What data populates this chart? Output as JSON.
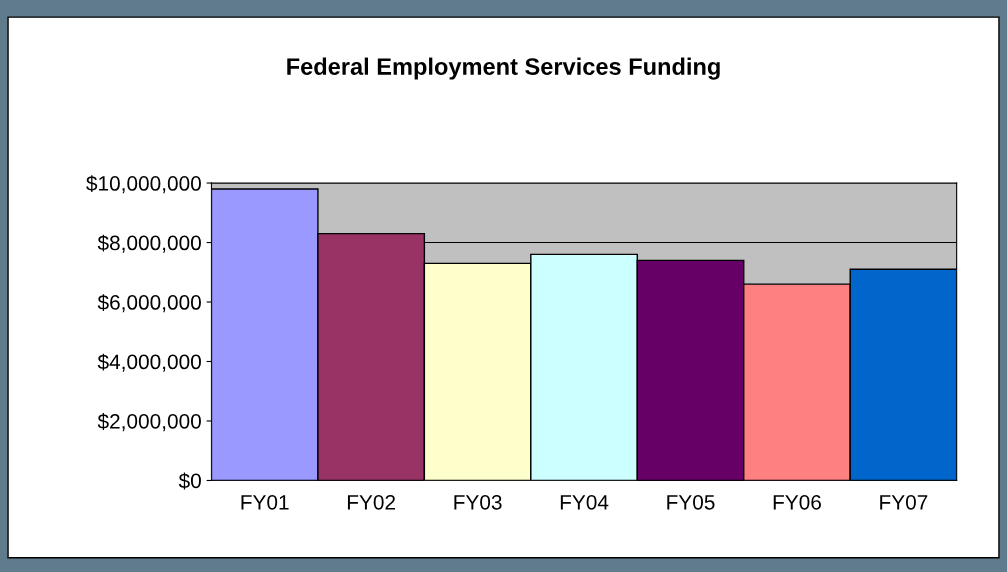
{
  "chart_data": {
    "type": "bar",
    "title": "Federal Employment Services Funding",
    "categories": [
      "FY01",
      "FY02",
      "FY03",
      "FY04",
      "FY05",
      "FY06",
      "FY07"
    ],
    "values": [
      9800000,
      8300000,
      7300000,
      7600000,
      7400000,
      6600000,
      7100000
    ],
    "colors": [
      "#9999ff",
      "#993366",
      "#ffffcc",
      "#ccffff",
      "#660066",
      "#ff8080",
      "#0066cc"
    ],
    "ylim": [
      0,
      10000000
    ],
    "yticks": [
      {
        "value": 0,
        "label": "$0"
      },
      {
        "value": 2000000,
        "label": "$2,000,000"
      },
      {
        "value": 4000000,
        "label": "$4,000,000"
      },
      {
        "value": 6000000,
        "label": "$6,000,000"
      },
      {
        "value": 8000000,
        "label": "$8,000,000"
      },
      {
        "value": 10000000,
        "label": "$10,000,000"
      }
    ],
    "grid": "y"
  }
}
